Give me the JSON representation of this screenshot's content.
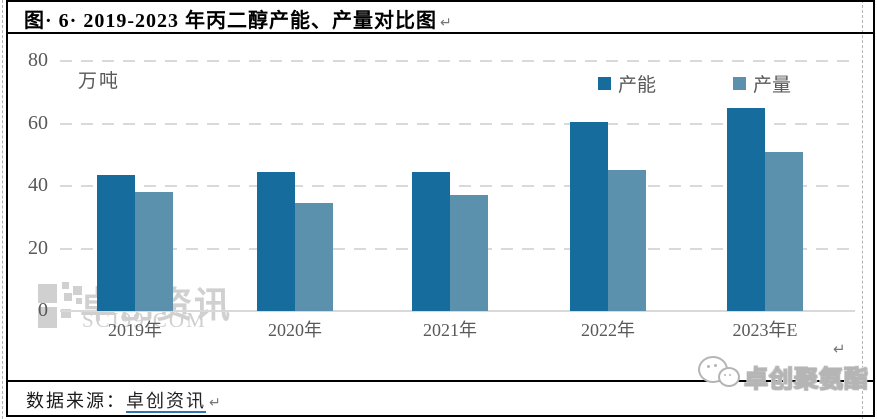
{
  "page": {
    "title": "图· 6· 2019-2023 年丙二醇产能、产量对比图",
    "paragraph_mark": "↵",
    "source_label": "数据来源：",
    "source_link": "卓创资讯"
  },
  "chart_data": {
    "type": "bar",
    "title": "2019-2023 年丙二醇产能、产量对比图",
    "unit_label": "万吨",
    "categories": [
      "2019年",
      "2020年",
      "2021年",
      "2022年",
      "2023年E"
    ],
    "series": [
      {
        "name": "产能",
        "color": "#156c9d",
        "values": [
          43.5,
          44.5,
          44.5,
          60.5,
          65
        ]
      },
      {
        "name": "产量",
        "color": "#5b91ac",
        "values": [
          38,
          34.5,
          37,
          45,
          51
        ]
      }
    ],
    "ylim": [
      0,
      80
    ],
    "yticks": [
      0,
      20,
      40,
      60,
      80
    ],
    "grid": "horizontal dashed",
    "legend_position": "top-right"
  },
  "watermarks": {
    "chart_watermark_text": "卓创资讯",
    "chart_watermark_sub": "SCI99.COM",
    "wechat_watermark": "卓创聚氨酯"
  },
  "colors": {
    "capacity_bar": "#156c9d",
    "output_bar": "#5b91ac",
    "axis_text": "#595959",
    "gridline": "#d9d9d9",
    "watermark": "#d0d0d0",
    "link_underline": "#2e75b6",
    "border": "#000000"
  }
}
